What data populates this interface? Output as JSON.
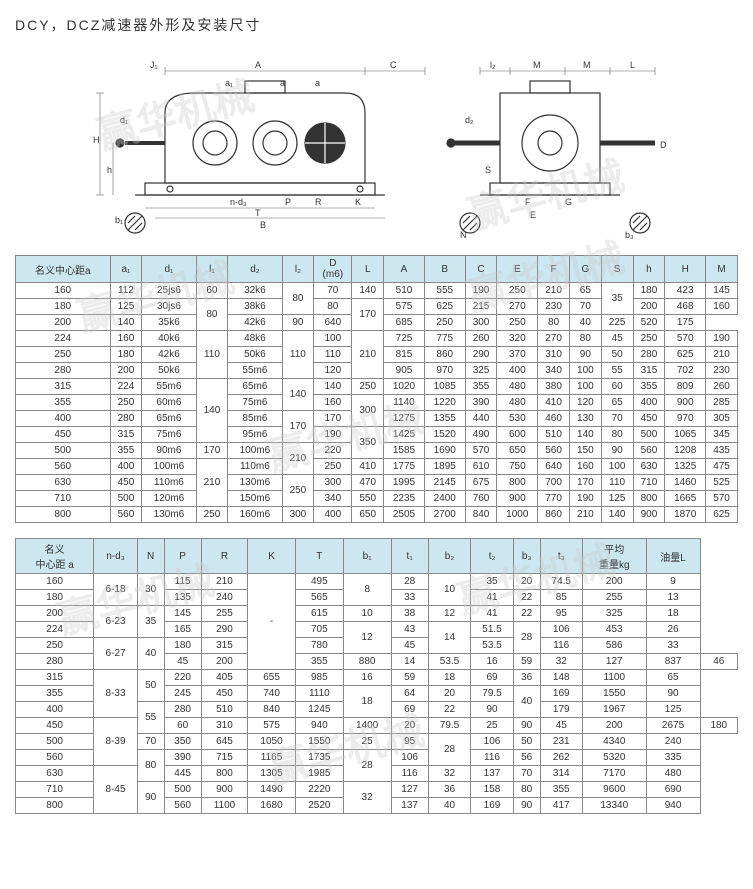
{
  "title": "DCY，DCZ减速器外形及安装尺寸",
  "diagram_labels": {
    "J1": "J₁",
    "A": "A",
    "C": "C",
    "a_s": "a",
    "a_s2": "a",
    "a1": "a₁",
    "d1": "d₁",
    "H": "H",
    "h": "h",
    "b1": "b₁",
    "nd3": "n-d₃",
    "P": "P",
    "R": "R",
    "K": "K",
    "T": "T",
    "B": "B",
    "l2": "l₂",
    "M1": "M",
    "M2": "M",
    "L": "L",
    "d2": "d₂",
    "D": "D",
    "S": "S",
    "F": "F",
    "G": "G",
    "E": "E",
    "b3": "b₃",
    "N": "N"
  },
  "table1": {
    "headers": [
      "名义中心距a",
      "a₁",
      "d₁",
      "l₁",
      "d₂",
      "l₂",
      "D\n(m6)",
      "L",
      "A",
      "B",
      "C",
      "E",
      "F",
      "G",
      "S",
      "h",
      "H",
      "M"
    ],
    "rows": [
      [
        "160",
        "112",
        "25js6",
        {
          "t": "60"
        },
        "32k6",
        {
          "t": "80",
          "r": 2
        },
        {
          "t": "70"
        },
        "140",
        "510",
        "555",
        "190",
        "250",
        "210",
        "65",
        {
          "t": "35",
          "r": 2
        },
        "180",
        "423",
        "145"
      ],
      [
        "180",
        "125",
        "30js6",
        {
          "t": "80",
          "r": 2
        },
        "38k6",
        {
          "t": "80"
        },
        {
          "t": "170",
          "r": 2
        },
        "575",
        "625",
        "215",
        "270",
        "230",
        "70",
        "200",
        "468",
        "160"
      ],
      [
        "200",
        "140",
        "35k6",
        "42k6",
        {
          "t": "90"
        },
        "640",
        "685",
        "250",
        "300",
        "250",
        "80",
        "40",
        "225",
        "520",
        "175"
      ],
      [
        "224",
        "160",
        "40k6",
        {
          "t": "110",
          "r": 3
        },
        "48k6",
        {
          "t": "110",
          "r": 3
        },
        {
          "t": "100"
        },
        {
          "t": "210",
          "r": 3
        },
        "725",
        "775",
        "260",
        "320",
        "270",
        "80",
        "45",
        "250",
        "570",
        "190"
      ],
      [
        "250",
        "180",
        "42k6",
        "50k6",
        {
          "t": "110"
        },
        "815",
        "860",
        "290",
        "370",
        "310",
        "90",
        "50",
        "280",
        "625",
        "210"
      ],
      [
        "280",
        "200",
        "50k6",
        "55m6",
        {
          "t": "120"
        },
        "905",
        "970",
        "325",
        "400",
        "340",
        "100",
        "55",
        "315",
        "702",
        "230"
      ],
      [
        "315",
        "224",
        "55m6",
        {
          "t": "140",
          "r": 4
        },
        "65m6",
        {
          "t": "140",
          "r": 2
        },
        {
          "t": "140"
        },
        "250",
        "1020",
        "1085",
        "355",
        "480",
        "380",
        "100",
        "60",
        "355",
        "809",
        "260"
      ],
      [
        "355",
        "250",
        "60m6",
        "75m6",
        {
          "t": "160"
        },
        {
          "t": "300",
          "r": 2
        },
        "1140",
        "1220",
        "390",
        "480",
        "410",
        "120",
        "65",
        "400",
        "900",
        "285"
      ],
      [
        "400",
        "280",
        "65m6",
        "85m6",
        {
          "t": "170",
          "r": 2
        },
        {
          "t": "170"
        },
        "1275",
        "1355",
        "440",
        "530",
        "460",
        "130",
        "70",
        "450",
        "970",
        "305"
      ],
      [
        "450",
        "315",
        "75m6",
        "95m6",
        {
          "t": "190"
        },
        {
          "t": "350",
          "r": 2
        },
        "1425",
        "1520",
        "490",
        "600",
        "510",
        "140",
        "80",
        "500",
        "1065",
        "345"
      ],
      [
        "500",
        "355",
        "90m6",
        {
          "t": "170"
        },
        "100m6",
        {
          "t": "210",
          "r": 2
        },
        {
          "t": "220"
        },
        "1585",
        "1690",
        "570",
        "650",
        "560",
        "150",
        "90",
        "560",
        "1208",
        "435"
      ],
      [
        "560",
        "400",
        "100m6",
        {
          "t": "210",
          "r": 3
        },
        "110m6",
        {
          "t": "250"
        },
        "410",
        "1775",
        "1895",
        "610",
        "750",
        "640",
        "160",
        "100",
        "630",
        "1325",
        "475"
      ],
      [
        "630",
        "450",
        "110m6",
        "130m6",
        {
          "t": "250",
          "r": 2
        },
        {
          "t": "300"
        },
        "470",
        "1995",
        "2145",
        "675",
        "800",
        "700",
        "170",
        "110",
        "710",
        "1460",
        "525"
      ],
      [
        "710",
        "500",
        "120m6",
        "150m6",
        {
          "t": "340"
        },
        "550",
        "2235",
        "2400",
        "760",
        "900",
        "770",
        "190",
        "125",
        "800",
        "1665",
        "570"
      ],
      [
        "800",
        "560",
        "130m6",
        {
          "t": "250"
        },
        "160m6",
        {
          "t": "300"
        },
        {
          "t": "400"
        },
        "650",
        "2505",
        "2700",
        "840",
        "1000",
        "860",
        "210",
        "140",
        "900",
        "1870",
        "625"
      ]
    ]
  },
  "table2": {
    "headers": [
      "名义\n中心距 a",
      "n-d₃",
      "N",
      "P",
      "R",
      "K",
      "T",
      "b₁",
      "t₁",
      "b₂",
      "t₂",
      "b₃",
      "t₃",
      "平均\n重量kg",
      "油量L"
    ],
    "rows": [
      [
        "160",
        {
          "t": "6-18",
          "r": 2
        },
        {
          "t": "30",
          "r": 2
        },
        "115",
        "210",
        {
          "t": "-",
          "r": 6
        },
        "495",
        {
          "t": "8",
          "r": 2
        },
        "28",
        {
          "t": "10",
          "r": 2
        },
        "35",
        "20",
        "74.5",
        "200",
        "9"
      ],
      [
        "180",
        "135",
        "240",
        "565",
        "33",
        "41",
        "22",
        "85",
        "255",
        "13"
      ],
      [
        "200",
        {
          "t": "6-23",
          "r": 2
        },
        {
          "t": "35",
          "r": 2
        },
        "145",
        "255",
        "615",
        "10",
        "38",
        "12",
        "41",
        "22",
        "95",
        "325",
        "18"
      ],
      [
        "224",
        "165",
        "290",
        "705",
        {
          "t": "12",
          "r": 2
        },
        "43",
        {
          "t": "14",
          "r": 2
        },
        "51.5",
        {
          "t": "28",
          "r": 2
        },
        "106",
        "453",
        "26"
      ],
      [
        "250",
        {
          "t": "6-27",
          "r": 2
        },
        {
          "t": "40",
          "r": 2
        },
        "180",
        "315",
        "780",
        "45",
        "53.5",
        "116",
        "586",
        "33"
      ],
      [
        "280",
        "45",
        "200",
        "355",
        "880",
        "14",
        "53.5",
        "16",
        "59",
        "32",
        "127",
        "837",
        "46"
      ],
      [
        "315",
        {
          "t": "8-33",
          "r": 3
        },
        {
          "t": "50",
          "r": 2
        },
        "220",
        "405",
        "655",
        "985",
        "16",
        "59",
        "18",
        "69",
        "36",
        "148",
        "1100",
        "65"
      ],
      [
        "355",
        "245",
        "450",
        "740",
        "1110",
        {
          "t": "18",
          "r": 2
        },
        "64",
        "20",
        "79.5",
        {
          "t": "40",
          "r": 2
        },
        "169",
        "1550",
        "90"
      ],
      [
        "400",
        {
          "t": "55",
          "r": 2
        },
        "280",
        "510",
        "840",
        "1245",
        "69",
        "22",
        "90",
        "179",
        "1967",
        "125"
      ],
      [
        "450",
        {
          "t": "8-39",
          "r": 3
        },
        "60",
        "310",
        "575",
        "940",
        "1400",
        "20",
        "79.5",
        "25",
        "90",
        "45",
        "200",
        "2675",
        "180"
      ],
      [
        "500",
        "70",
        "350",
        "645",
        "1050",
        "1550",
        "25",
        "95",
        {
          "t": "28",
          "r": 2
        },
        "106",
        "50",
        "231",
        "4340",
        "240"
      ],
      [
        "560",
        {
          "t": "80",
          "r": 2
        },
        "390",
        "715",
        "1165",
        "1735",
        {
          "t": "28",
          "r": 2
        },
        "106",
        "116",
        "56",
        "262",
        "5320",
        "335"
      ],
      [
        "630",
        {
          "t": "8-45",
          "r": 3
        },
        "445",
        "800",
        "1305",
        "1985",
        "116",
        "32",
        "137",
        "70",
        "314",
        "7170",
        "480"
      ],
      [
        "710",
        {
          "t": "90",
          "r": 2
        },
        "500",
        "900",
        "1490",
        "2220",
        {
          "t": "32",
          "r": 2
        },
        "127",
        "36",
        "158",
        "80",
        "355",
        "9600",
        "690"
      ],
      [
        "800",
        "560",
        "1100",
        "1680",
        "2520",
        "137",
        "40",
        "169",
        "90",
        "417",
        "13340",
        "940"
      ]
    ]
  }
}
